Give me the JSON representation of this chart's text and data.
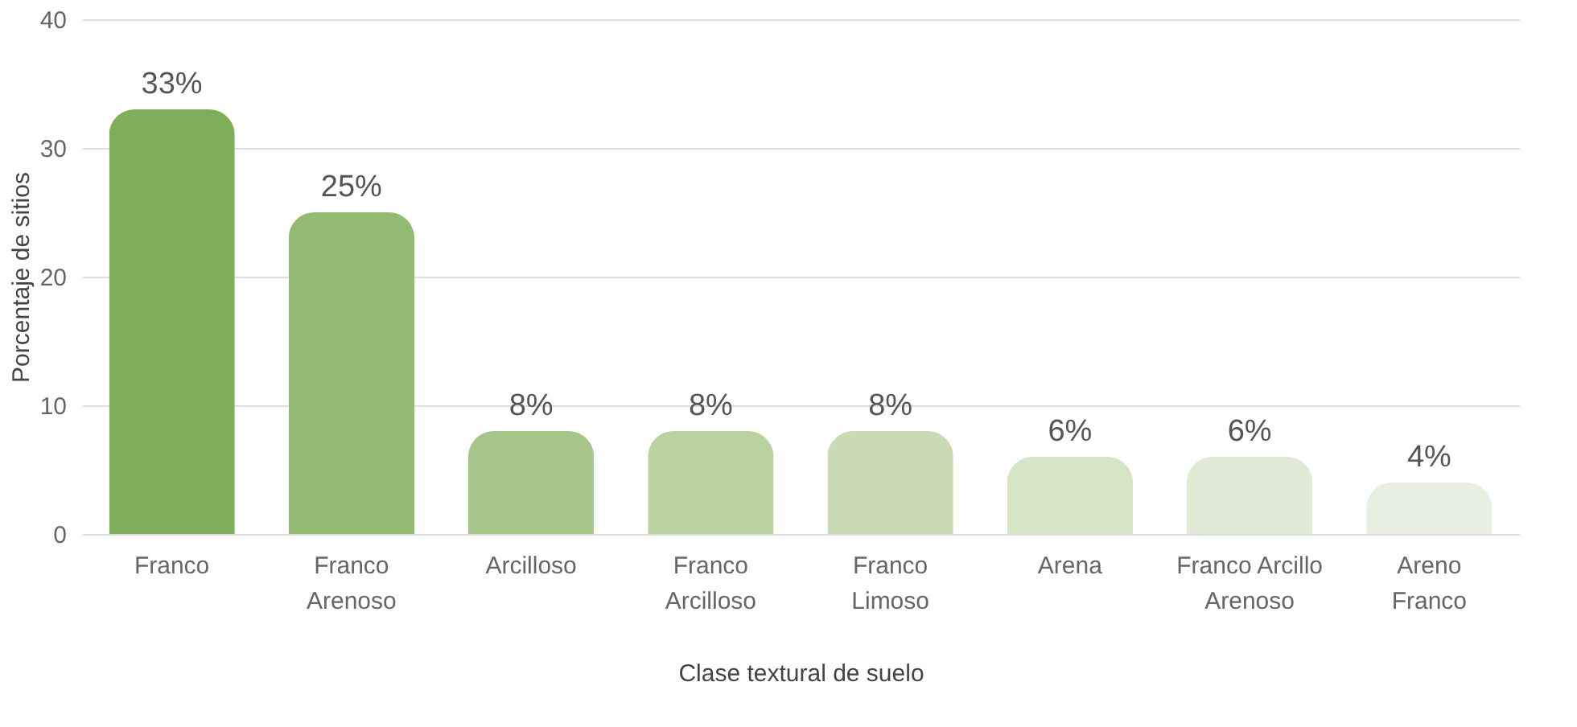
{
  "chart_data": {
    "type": "bar",
    "xlabel": "Clase textural de suelo",
    "ylabel": "Porcentaje de sitios",
    "categories": [
      "Franco",
      "Franco\nArenoso",
      "Arcilloso",
      "Franco\nArcilloso",
      "Franco\nLimoso",
      "Arena",
      "Franco Arcillo\nArenoso",
      "Areno\nFranco"
    ],
    "values": [
      33,
      25,
      8,
      8,
      8,
      6,
      6,
      4
    ],
    "value_labels": [
      "33%",
      "25%",
      "8%",
      "8%",
      "8%",
      "6%",
      "6%",
      "4%"
    ],
    "colors": [
      "#7fae5a",
      "#93ba72",
      "#a6c58b",
      "#b8d3a0",
      "#c9dab5",
      "#d6e4c6",
      "#e0ead5",
      "#e8efe0"
    ],
    "ylim": [
      0,
      40
    ],
    "yticks": [
      0,
      10,
      20,
      30,
      40
    ],
    "grid": "y"
  }
}
